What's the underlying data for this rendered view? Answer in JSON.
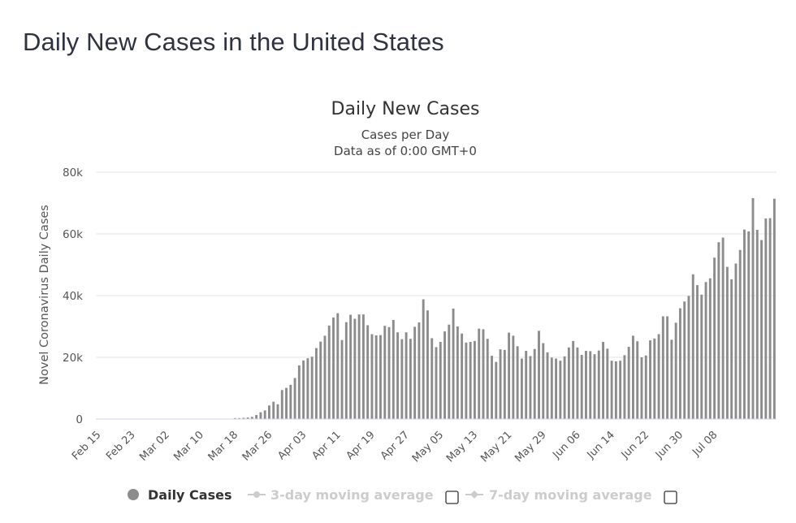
{
  "page": {
    "heading": "Daily New Cases in the United States"
  },
  "colors": {
    "bar": "#8c8c8c",
    "grid": "#e6e6e6",
    "legend_active": "#333333",
    "legend_inactive": "#cccccc"
  },
  "chart_data": {
    "type": "bar",
    "title": "Daily New Cases",
    "subtitle": "Cases per Day",
    "subtitle2": "Data as of 0:00 GMT+0",
    "ylabel": "Novel Coronavirus Daily Cases",
    "xlabel": "",
    "ylim": [
      0,
      80000
    ],
    "yticks": [
      {
        "value": 0,
        "label": "0"
      },
      {
        "value": 20000,
        "label": "20k"
      },
      {
        "value": 40000,
        "label": "40k"
      },
      {
        "value": 60000,
        "label": "60k"
      },
      {
        "value": 80000,
        "label": "80k"
      }
    ],
    "start_date": "Feb 15",
    "xticks": [
      "Feb 15",
      "Feb 23",
      "Mar 02",
      "Mar 10",
      "Mar 18",
      "Mar 26",
      "Apr 03",
      "Apr 11",
      "Apr 19",
      "Apr 27",
      "May 05",
      "May 13",
      "May 21",
      "May 29",
      "Jun 06",
      "Jun 14",
      "Jun 22",
      "Jun 30",
      "Jul 08"
    ],
    "xtick_every": 8,
    "values": [
      0,
      0,
      0,
      0,
      0,
      0,
      0,
      0,
      0,
      0,
      0,
      0,
      0,
      0,
      0,
      0,
      0,
      0,
      0,
      0,
      0,
      0,
      0,
      0,
      0,
      0,
      0,
      0,
      0,
      0,
      0,
      0,
      300,
      300,
      400,
      500,
      700,
      1300,
      2200,
      2800,
      4400,
      5600,
      4800,
      9400,
      10100,
      11100,
      13300,
      17400,
      19000,
      19700,
      20200,
      23000,
      25100,
      27000,
      30300,
      32900,
      34300,
      25600,
      31400,
      33800,
      32500,
      33900,
      33900,
      30400,
      27500,
      27100,
      27200,
      30200,
      29800,
      32100,
      28100,
      25900,
      28100,
      26000,
      29900,
      31300,
      38800,
      35200,
      26200,
      23300,
      25000,
      28400,
      30600,
      35800,
      30000,
      27700,
      24800,
      25000,
      25300,
      29300,
      29100,
      26000,
      20500,
      18500,
      22600,
      22400,
      28000,
      27000,
      23600,
      19600,
      22100,
      20400,
      22700,
      28600,
      24600,
      21600,
      19900,
      19600,
      18900,
      20300,
      23200,
      25300,
      23200,
      20800,
      22100,
      22000,
      21000,
      22200,
      25000,
      22800,
      18900,
      18700,
      18900,
      20700,
      23400,
      27000,
      25200,
      20000,
      20600,
      25500,
      26100,
      27500,
      33300,
      33300,
      25700,
      31200,
      35900,
      38100,
      39900,
      46900,
      43400,
      40300,
      44400,
      45600,
      52300,
      57300,
      58800,
      49300,
      45300,
      50400,
      54800,
      61400,
      60800,
      71600,
      61300,
      58000,
      65000,
      65100,
      71400
    ],
    "series": [
      {
        "name": "Daily Cases",
        "visible": true
      }
    ],
    "legend": [
      {
        "label": "Daily Cases",
        "active": true
      },
      {
        "label": "3-day moving average",
        "active": false
      },
      {
        "label": "7-day moving average",
        "active": false
      }
    ]
  }
}
